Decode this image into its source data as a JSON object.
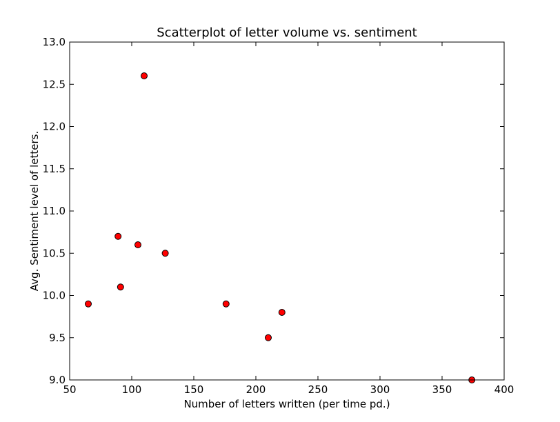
{
  "chart_data": {
    "type": "scatter",
    "title": "Scatterplot of letter volume vs. sentiment",
    "xlabel": "Number of letters written (per time pd.)",
    "ylabel": "Avg. Sentiment level of letters.",
    "xlim": [
      50,
      400
    ],
    "ylim": [
      9.0,
      13.0
    ],
    "xticks": [
      "50",
      "100",
      "150",
      "200",
      "250",
      "300",
      "350",
      "400"
    ],
    "yticks": [
      "9.0",
      "9.5",
      "10.0",
      "10.5",
      "11.0",
      "11.5",
      "12.0",
      "12.5",
      "13.0"
    ],
    "grid": false,
    "marker_color": "#ff0000",
    "marker_edge_color": "#000000",
    "series": [
      {
        "points": [
          {
            "x": 65,
            "y": 9.9
          },
          {
            "x": 89,
            "y": 10.7
          },
          {
            "x": 91,
            "y": 10.1
          },
          {
            "x": 105,
            "y": 10.6
          },
          {
            "x": 110,
            "y": 12.6
          },
          {
            "x": 127,
            "y": 10.5
          },
          {
            "x": 176,
            "y": 9.9
          },
          {
            "x": 210,
            "y": 9.5
          },
          {
            "x": 221,
            "y": 9.8
          },
          {
            "x": 374,
            "y": 9.0
          }
        ]
      }
    ]
  }
}
